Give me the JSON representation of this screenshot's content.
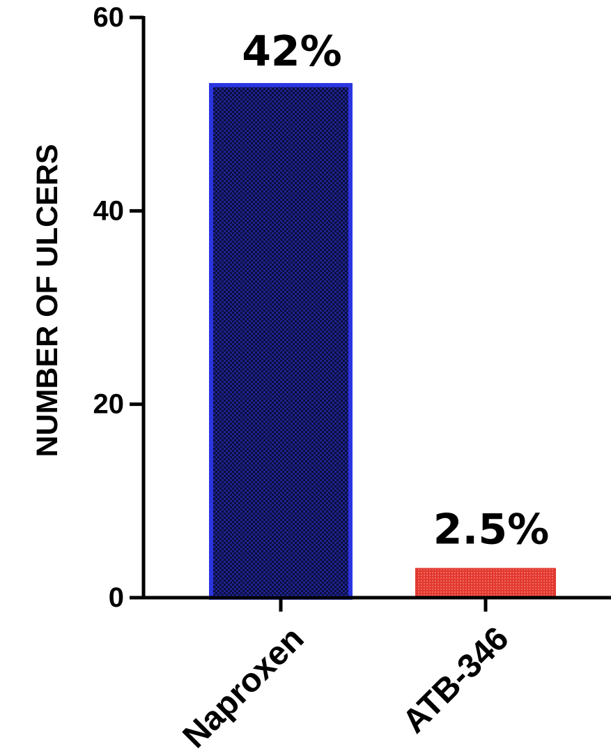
{
  "chart_data": {
    "type": "bar",
    "title": "",
    "xlabel": "",
    "ylabel": "NUMBER OF ULCERS",
    "ylim": [
      0,
      60
    ],
    "yticks": [
      0,
      20,
      40,
      60
    ],
    "categories": [
      "Naproxen",
      "ATB-346"
    ],
    "values": [
      53,
      3
    ],
    "data_labels": [
      "42%",
      "2.5%"
    ],
    "colors": {
      "Naproxen": {
        "fill": "#1a1f8a",
        "stroke": "#2b35e0"
      },
      "ATB-346": {
        "fill": "#e03a32",
        "stroke": "#e03a32"
      }
    },
    "grid": false,
    "legend": "none"
  }
}
